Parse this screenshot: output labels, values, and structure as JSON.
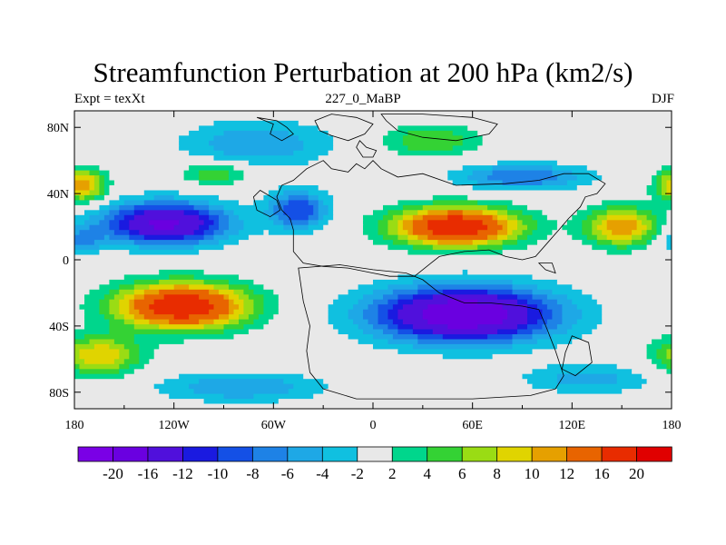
{
  "chart_data": {
    "type": "heatmap",
    "title": "Streamfunction Perturbation at 200 hPa (km2/s)",
    "left_string": "Expt = texXt",
    "center_string": "227_0_MaBP",
    "right_string": "DJF",
    "x_ticks": [
      {
        "value": -180,
        "label": "180"
      },
      {
        "value": -120,
        "label": "120W"
      },
      {
        "value": -60,
        "label": "60W"
      },
      {
        "value": 0,
        "label": "0"
      },
      {
        "value": 60,
        "label": "60E"
      },
      {
        "value": 120,
        "label": "120E"
      },
      {
        "value": 180,
        "label": "180"
      }
    ],
    "y_ticks": [
      {
        "value": 80,
        "label": "80N"
      },
      {
        "value": 40,
        "label": "40N"
      },
      {
        "value": 0,
        "label": "0"
      },
      {
        "value": -40,
        "label": "40S"
      },
      {
        "value": -80,
        "label": "80S"
      }
    ],
    "xlim": [
      -180,
      180
    ],
    "ylim": [
      -90,
      90
    ],
    "colorbar": {
      "levels": [
        -20,
        -16,
        -12,
        -10,
        -8,
        -6,
        -4,
        -2,
        2,
        4,
        6,
        8,
        10,
        12,
        16,
        20
      ],
      "labels": [
        "-20",
        "-16",
        "-12",
        "-10",
        "-8",
        "-6",
        "-4",
        "-2",
        "2",
        "4",
        "6",
        "8",
        "10",
        "12",
        "16",
        "20"
      ],
      "colors": [
        "#7a00e6",
        "#6a00e0",
        "#5010dc",
        "#1a1ae0",
        "#1450e6",
        "#1e82e6",
        "#1ea8e6",
        "#10c0e0",
        "#e8e8e8",
        "#00d68c",
        "#34d234",
        "#9adc14",
        "#e0d400",
        "#e6a000",
        "#e86400",
        "#e82c00",
        "#e00000"
      ]
    },
    "features": [
      {
        "name": "north-polar-negative",
        "lon": -70,
        "lat": 70,
        "value": -6
      },
      {
        "name": "arctic-positive",
        "lon": 35,
        "lat": 72,
        "value": 6
      },
      {
        "name": "north-pacific-positive-west",
        "lon": -175,
        "lat": 45,
        "value": 12
      },
      {
        "name": "north-america-positive",
        "lon": -95,
        "lat": 52,
        "value": 6
      },
      {
        "name": "north-america-negative-trough",
        "lon": -125,
        "lat": 22,
        "value": -16
      },
      {
        "name": "north-atlantic-negative",
        "lon": -45,
        "lat": 30,
        "value": -10
      },
      {
        "name": "eurasia-negative",
        "lon": 90,
        "lat": 50,
        "value": -8
      },
      {
        "name": "asia-subtropical-high",
        "lon": 50,
        "lat": 20,
        "value": 20
      },
      {
        "name": "pacific-subtropical-positive",
        "lon": 150,
        "lat": 20,
        "value": 12
      },
      {
        "name": "southern-hemisphere-negative",
        "lon": 55,
        "lat": -33,
        "value": -20
      },
      {
        "name": "south-pacific-positive",
        "lon": -115,
        "lat": -28,
        "value": 20
      },
      {
        "name": "far-south-pacific-positive",
        "lon": -165,
        "lat": -60,
        "value": 10
      },
      {
        "name": "southern-ocean-negative",
        "lon": -80,
        "lat": -75,
        "value": -6
      }
    ]
  }
}
